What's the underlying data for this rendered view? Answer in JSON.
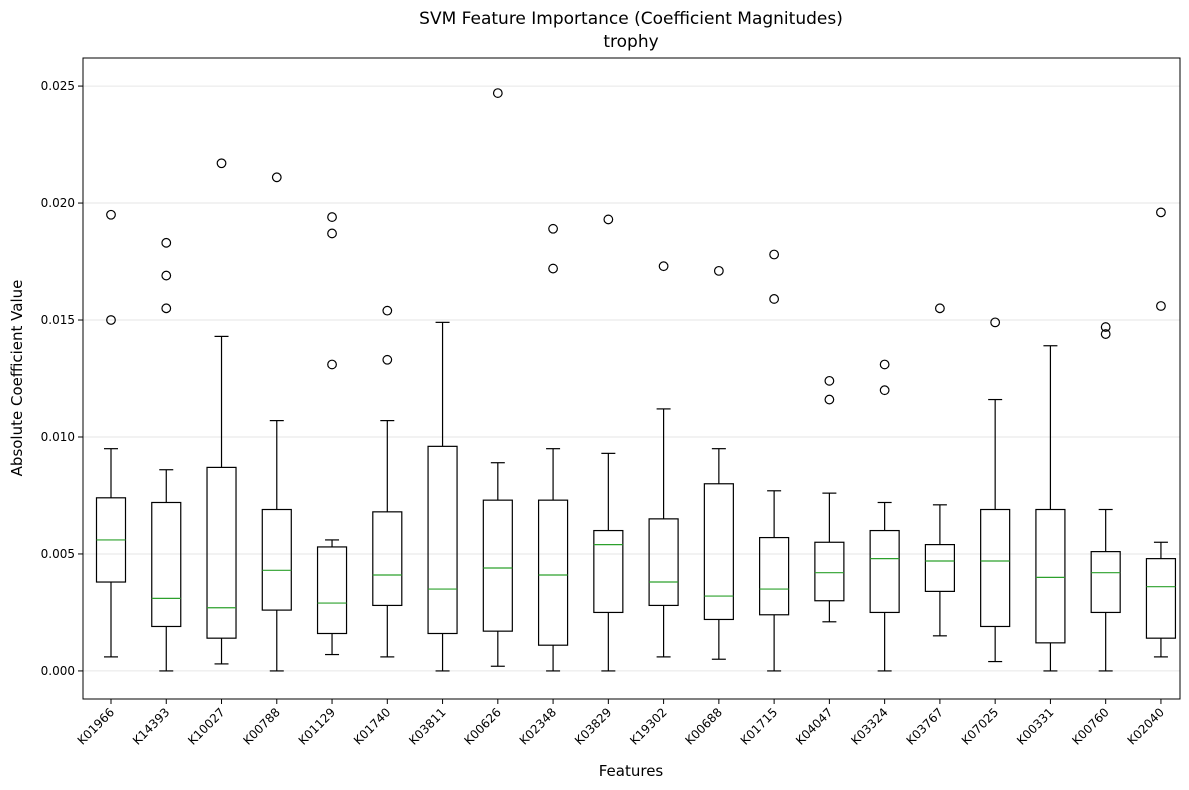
{
  "chart_data": {
    "type": "box",
    "title": "SVM Feature Importance (Coefficient Magnitudes)",
    "subtitle": "trophy",
    "xlabel": "Features",
    "ylabel": "Absolute Coefficient Value",
    "ylim": [
      -0.0012,
      0.0262
    ],
    "yticks": [
      0.0,
      0.005,
      0.01,
      0.015,
      0.02,
      0.025
    ],
    "ytick_labels": [
      "0.000",
      "0.005",
      "0.010",
      "0.015",
      "0.020",
      "0.025"
    ],
    "grid": "y",
    "box_color": "#000000",
    "median_color": "#2ca02c",
    "categories": [
      "K01966",
      "K14393",
      "K10027",
      "K00788",
      "K01129",
      "K01740",
      "K03811",
      "K00626",
      "K02348",
      "K03829",
      "K19302",
      "K00688",
      "K01715",
      "K04047",
      "K03324",
      "K03767",
      "K07025",
      "K00331",
      "K00760",
      "K02040"
    ],
    "boxes": [
      {
        "whislo": 0.0006,
        "q1": 0.0038,
        "med": 0.0056,
        "q3": 0.0074,
        "whishi": 0.0095,
        "fliers": [
          0.015,
          0.0195
        ]
      },
      {
        "whislo": 0.0,
        "q1": 0.0019,
        "med": 0.0031,
        "q3": 0.0072,
        "whishi": 0.0086,
        "fliers": [
          0.0155,
          0.0169,
          0.0183
        ]
      },
      {
        "whislo": 0.0003,
        "q1": 0.0014,
        "med": 0.0027,
        "q3": 0.0087,
        "whishi": 0.0143,
        "fliers": [
          0.0217
        ]
      },
      {
        "whislo": 0.0,
        "q1": 0.0026,
        "med": 0.0043,
        "q3": 0.0069,
        "whishi": 0.0107,
        "fliers": [
          0.0211
        ]
      },
      {
        "whislo": 0.0007,
        "q1": 0.0016,
        "med": 0.0029,
        "q3": 0.0053,
        "whishi": 0.0056,
        "fliers": [
          0.0131,
          0.0187,
          0.0194
        ]
      },
      {
        "whislo": 0.0006,
        "q1": 0.0028,
        "med": 0.0041,
        "q3": 0.0068,
        "whishi": 0.0107,
        "fliers": [
          0.0133,
          0.0154
        ]
      },
      {
        "whislo": 0.0,
        "q1": 0.0016,
        "med": 0.0035,
        "q3": 0.0096,
        "whishi": 0.0149,
        "fliers": []
      },
      {
        "whislo": 0.0002,
        "q1": 0.0017,
        "med": 0.0044,
        "q3": 0.0073,
        "whishi": 0.0089,
        "fliers": [
          0.0247
        ]
      },
      {
        "whislo": 0.0,
        "q1": 0.0011,
        "med": 0.0041,
        "q3": 0.0073,
        "whishi": 0.0095,
        "fliers": [
          0.0172,
          0.0189
        ]
      },
      {
        "whislo": 0.0,
        "q1": 0.0025,
        "med": 0.0054,
        "q3": 0.006,
        "whishi": 0.0093,
        "fliers": [
          0.0193
        ]
      },
      {
        "whislo": 0.0006,
        "q1": 0.0028,
        "med": 0.0038,
        "q3": 0.0065,
        "whishi": 0.0112,
        "fliers": [
          0.0173
        ]
      },
      {
        "whislo": 0.0005,
        "q1": 0.0022,
        "med": 0.0032,
        "q3": 0.008,
        "whishi": 0.0095,
        "fliers": [
          0.0171
        ]
      },
      {
        "whislo": 0.0,
        "q1": 0.0024,
        "med": 0.0035,
        "q3": 0.0057,
        "whishi": 0.0077,
        "fliers": [
          0.0159,
          0.0178
        ]
      },
      {
        "whislo": 0.0021,
        "q1": 0.003,
        "med": 0.0042,
        "q3": 0.0055,
        "whishi": 0.0076,
        "fliers": [
          0.0116,
          0.0124
        ]
      },
      {
        "whislo": 0.0,
        "q1": 0.0025,
        "med": 0.0048,
        "q3": 0.006,
        "whishi": 0.0072,
        "fliers": [
          0.012,
          0.0131
        ]
      },
      {
        "whislo": 0.0015,
        "q1": 0.0034,
        "med": 0.0047,
        "q3": 0.0054,
        "whishi": 0.0071,
        "fliers": [
          0.0155
        ]
      },
      {
        "whislo": 0.0004,
        "q1": 0.0019,
        "med": 0.0047,
        "q3": 0.0069,
        "whishi": 0.0116,
        "fliers": [
          0.0149
        ]
      },
      {
        "whislo": 0.0,
        "q1": 0.0012,
        "med": 0.004,
        "q3": 0.0069,
        "whishi": 0.0139,
        "fliers": []
      },
      {
        "whislo": 0.0,
        "q1": 0.0025,
        "med": 0.0042,
        "q3": 0.0051,
        "whishi": 0.0069,
        "fliers": [
          0.0144,
          0.0147
        ]
      },
      {
        "whislo": 0.0006,
        "q1": 0.0014,
        "med": 0.0036,
        "q3": 0.0048,
        "whishi": 0.0055,
        "fliers": [
          0.0156,
          0.0196
        ]
      }
    ]
  }
}
